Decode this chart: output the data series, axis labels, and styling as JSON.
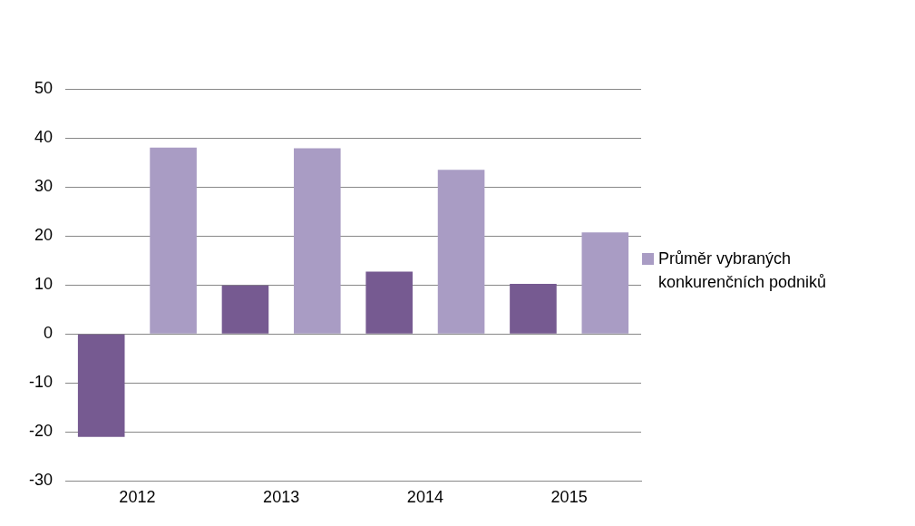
{
  "chart_data": {
    "type": "bar",
    "categories": [
      "2012",
      "2013",
      "2014",
      "2015"
    ],
    "series": [
      {
        "color": "#765a91",
        "values": [
          -21,
          9.9,
          12.7,
          10.2
        ]
      },
      {
        "name": "Průměr vybraných konkurenčních podniků",
        "color": "#a99cc4",
        "values": [
          38,
          37.9,
          33.5,
          20.7
        ]
      }
    ],
    "ylim": [
      -30,
      50
    ],
    "yticks": [
      -30,
      -20,
      -10,
      0,
      10,
      20,
      30,
      40,
      50
    ],
    "grid": "y",
    "legend": "right"
  }
}
